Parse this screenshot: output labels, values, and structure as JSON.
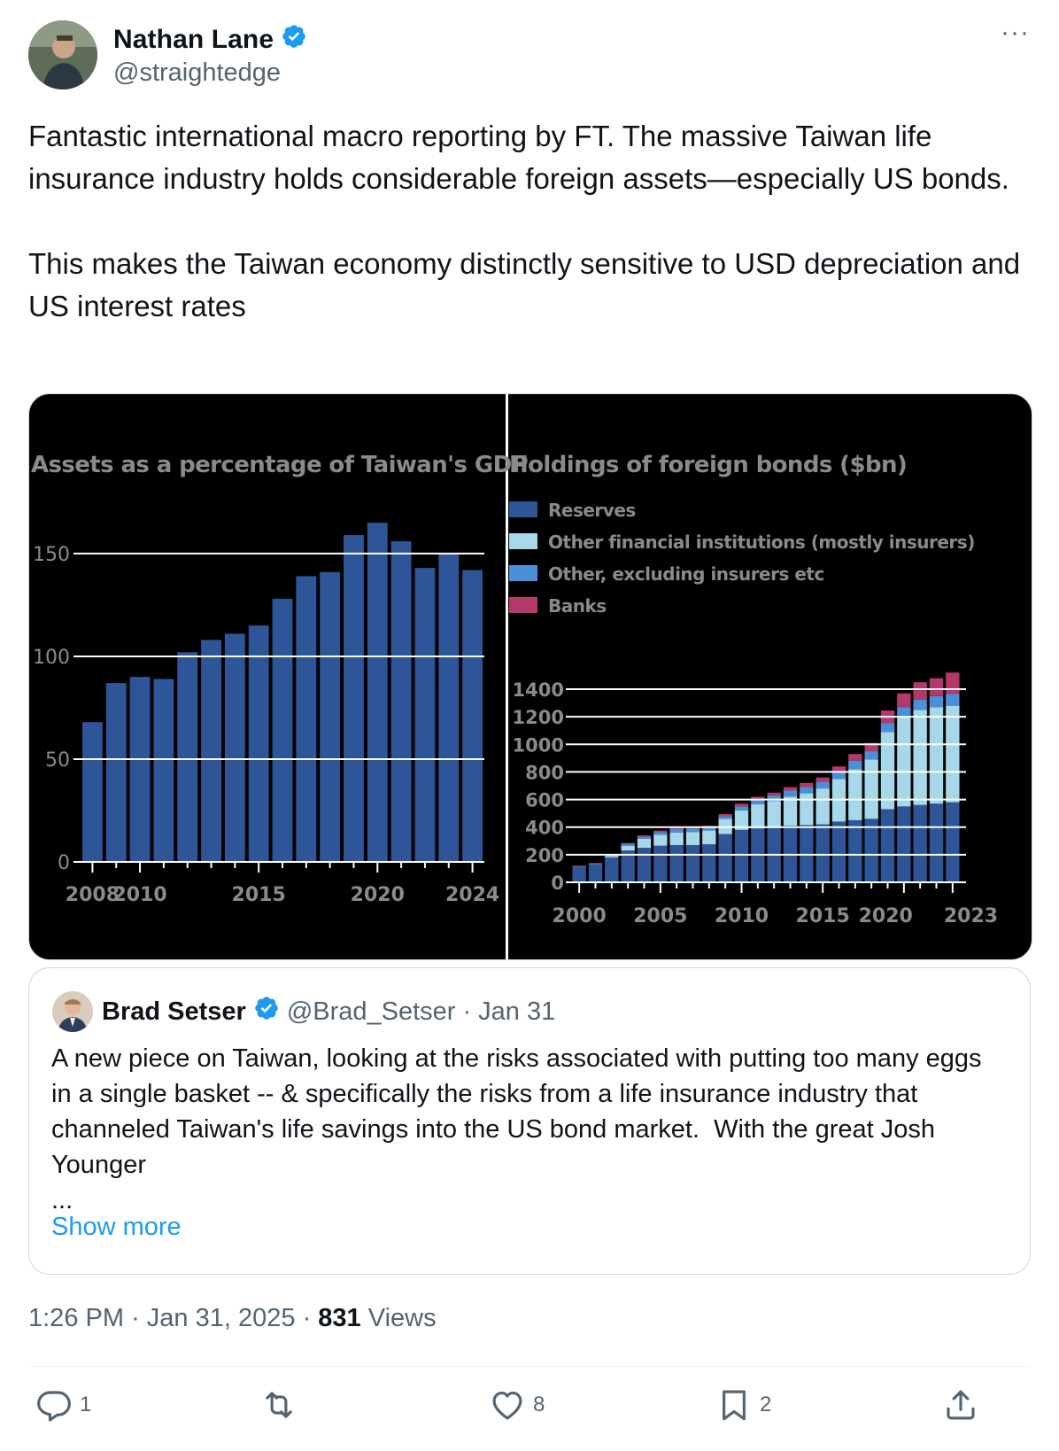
{
  "author": {
    "name": "Nathan Lane",
    "handle": "@straightedge",
    "verified": true
  },
  "more_icon": "ellipsis-icon",
  "tweet": {
    "text": "Fantastic international macro reporting by FT. The massive Taiwan life insurance industry holds considerable foreign assets—especially US bonds.\n\nThis makes the Taiwan economy distinctly sensitive to USD depreciation and US interest rates"
  },
  "chart_data": [
    {
      "type": "bar",
      "title": "Assets as a percentage of Taiwan's GDP",
      "categories": [
        "2008",
        "2009",
        "2010",
        "2011",
        "2012",
        "2013",
        "2014",
        "2015",
        "2016",
        "2017",
        "2018",
        "2019",
        "2020",
        "2021",
        "2022",
        "2023",
        "2024"
      ],
      "values": [
        68,
        87,
        90,
        89,
        102,
        108,
        111,
        115,
        128,
        139,
        141,
        159,
        165,
        156,
        143,
        150,
        142
      ],
      "x_tick_labels": [
        "2008",
        "2010",
        "2015",
        "2020",
        "2024"
      ],
      "y_ticks": [
        0,
        50,
        100,
        150
      ],
      "ylim": [
        0,
        175
      ],
      "grid": true,
      "colors": {
        "bar": "#2e5598"
      }
    },
    {
      "type": "bar",
      "stacked": true,
      "title": "Holdings of foreign bonds ($bn)",
      "categories": [
        "2000",
        "2001",
        "2002",
        "2003",
        "2004",
        "2005",
        "2006",
        "2007",
        "2008",
        "2009",
        "2010",
        "2011",
        "2012",
        "2013",
        "2014",
        "2015",
        "2016",
        "2017",
        "2018",
        "2019",
        "2020",
        "2021",
        "2022",
        "2023"
      ],
      "x_tick_labels": [
        "2000",
        "2005",
        "2010",
        "2015",
        "2020",
        "2023"
      ],
      "series": [
        {
          "name": "Reserves",
          "color": "#2e5598",
          "values": [
            110,
            130,
            180,
            230,
            250,
            265,
            270,
            270,
            275,
            350,
            380,
            390,
            400,
            410,
            415,
            420,
            440,
            450,
            460,
            530,
            550,
            560,
            570,
            580
          ]
        },
        {
          "name": "Other financial institutions (mostly insurers)",
          "color": "#a7d8ea",
          "values": [
            0,
            0,
            10,
            35,
            65,
            80,
            90,
            95,
            100,
            110,
            140,
            175,
            190,
            210,
            230,
            260,
            310,
            370,
            430,
            560,
            650,
            690,
            700,
            700
          ]
        },
        {
          "name": "Other, excluding insurers etc",
          "color": "#4a90d9",
          "values": [
            5,
            5,
            10,
            15,
            15,
            20,
            25,
            25,
            20,
            20,
            30,
            35,
            40,
            45,
            45,
            50,
            55,
            60,
            60,
            65,
            70,
            75,
            80,
            85
          ]
        },
        {
          "name": "Banks",
          "color": "#b5386b",
          "values": [
            5,
            5,
            5,
            5,
            10,
            10,
            10,
            10,
            15,
            15,
            20,
            20,
            20,
            25,
            30,
            30,
            35,
            50,
            60,
            90,
            100,
            125,
            130,
            155
          ]
        }
      ],
      "y_ticks": [
        0,
        200,
        400,
        600,
        800,
        1000,
        1200,
        1400
      ],
      "ylim": [
        0,
        1600
      ],
      "grid": true,
      "legend_position": "top-left"
    }
  ],
  "quote": {
    "name": "Brad Setser",
    "verified": true,
    "handle": "@Brad_Setser",
    "separator": "·",
    "date": "Jan 31",
    "text": "A new piece on Taiwan, looking at the risks associated with putting too many eggs in a single basket -- & specifically the risks from a life insurance industry that channeled Taiwan's life savings into the US bond market.  With the great Josh Younger\n...",
    "show_more": "Show more"
  },
  "meta": {
    "time": "1:26 PM",
    "date": "Jan 31, 2025",
    "separator": "·",
    "views_count": "831",
    "views_label": "Views"
  },
  "actions": {
    "reply_icon": "reply-icon",
    "reply_count": "1",
    "retweet_icon": "retweet-icon",
    "like_icon": "heart-icon",
    "like_count": "8",
    "bookmark_icon": "bookmark-icon",
    "bookmark_count": "2",
    "share_icon": "share-icon"
  }
}
